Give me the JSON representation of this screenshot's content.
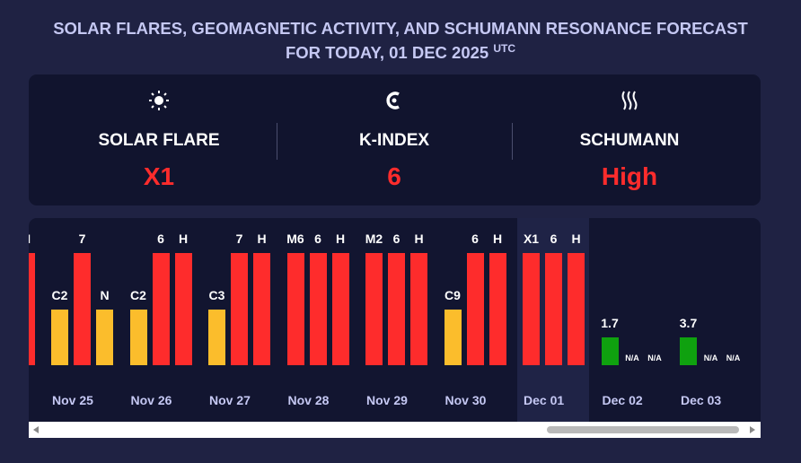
{
  "header": {
    "title": "SOLAR FLARES, GEOMAGNETIC ACTIVITY, AND SCHUMANN RESONANCE FORECAST FOR TODAY, 01 DEC 2025",
    "timezone": "UTC"
  },
  "summary": [
    {
      "label": "SOLAR FLARE",
      "value": "X1"
    },
    {
      "label": "K-INDEX",
      "value": "6"
    },
    {
      "label": "SCHUMANN",
      "value": "High"
    }
  ],
  "timeline": {
    "days": [
      {
        "date": null,
        "bars": [
          null,
          null,
          {
            "label": "H",
            "color": "#fe2c2c"
          }
        ]
      },
      {
        "date": "Nov 25",
        "bars": [
          {
            "label": "C2",
            "color": "#fbbd2c"
          },
          {
            "label": "7",
            "color": "#fe2c2c"
          },
          {
            "label": "N",
            "color": "#fbbd2c"
          }
        ]
      },
      {
        "date": "Nov 26",
        "bars": [
          {
            "label": "C2",
            "color": "#fbbd2c"
          },
          {
            "label": "6",
            "color": "#fe2c2c"
          },
          {
            "label": "H",
            "color": "#fe2c2c"
          }
        ]
      },
      {
        "date": "Nov 27",
        "bars": [
          {
            "label": "C3",
            "color": "#fbbd2c"
          },
          {
            "label": "7",
            "color": "#fe2c2c"
          },
          {
            "label": "H",
            "color": "#fe2c2c"
          }
        ]
      },
      {
        "date": "Nov 28",
        "bars": [
          {
            "label": "M6",
            "color": "#fe2c2c"
          },
          {
            "label": "6",
            "color": "#fe2c2c"
          },
          {
            "label": "H",
            "color": "#fe2c2c"
          }
        ]
      },
      {
        "date": "Nov 29",
        "bars": [
          {
            "label": "M2",
            "color": "#fe2c2c"
          },
          {
            "label": "6",
            "color": "#fe2c2c"
          },
          {
            "label": "H",
            "color": "#fe2c2c"
          }
        ]
      },
      {
        "date": "Nov 30",
        "bars": [
          {
            "label": "C9",
            "color": "#fbbd2c"
          },
          {
            "label": "6",
            "color": "#fe2c2c"
          },
          {
            "label": "H",
            "color": "#fe2c2c"
          }
        ]
      },
      {
        "date": "Dec 01",
        "highlight": true,
        "bars": [
          {
            "label": "X1",
            "color": "#fe2c2c"
          },
          {
            "label": "6",
            "color": "#fe2c2c"
          },
          {
            "label": "H",
            "color": "#fe2c2c"
          }
        ]
      },
      {
        "date": "Dec 02",
        "bars": [
          {
            "label": "1.7",
            "color": "#0fa10f"
          },
          {
            "label": "N/A",
            "color": null
          },
          {
            "label": "N/A",
            "color": null
          }
        ]
      },
      {
        "date": "Dec 03",
        "bars": [
          {
            "label": "3.7",
            "color": "#0fa10f"
          },
          {
            "label": "N/A",
            "color": null
          },
          {
            "label": "N/A",
            "color": null
          }
        ]
      }
    ]
  }
}
